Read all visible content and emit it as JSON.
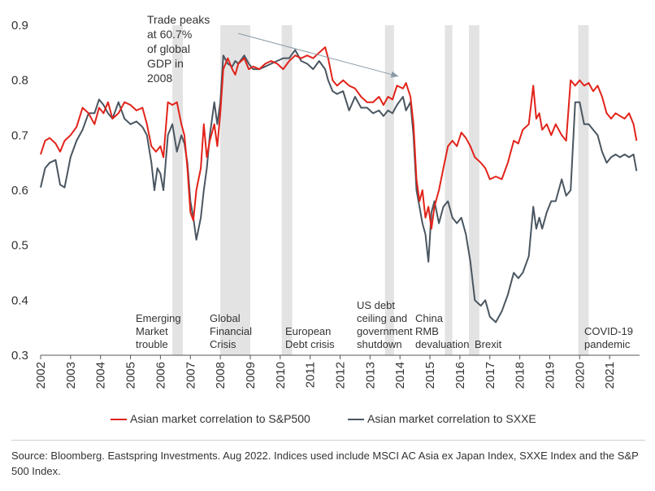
{
  "chart_data": {
    "type": "line",
    "title": "",
    "xlabel": "",
    "ylabel": "",
    "ylim": [
      0.3,
      0.9
    ],
    "xlim": [
      2002,
      2022
    ],
    "grid": false,
    "y_ticks": [
      "0.3",
      "0.4",
      "0.5",
      "0.6",
      "0.7",
      "0.8",
      "0.9"
    ],
    "x_ticks": [
      "2002",
      "2003",
      "2004",
      "2005",
      "2006",
      "2007",
      "2008",
      "2009",
      "2010",
      "2011",
      "2012",
      "2013",
      "2014",
      "2015",
      "2016",
      "2017",
      "2018",
      "2019",
      "2020",
      "2021"
    ],
    "legend_position": "bottom",
    "series": [
      {
        "name": "Asian market correlation to S&P500",
        "color": "#e2231a",
        "points": [
          [
            2002.0,
            0.665
          ],
          [
            2002.15,
            0.69
          ],
          [
            2002.3,
            0.695
          ],
          [
            2002.5,
            0.685
          ],
          [
            2002.65,
            0.67
          ],
          [
            2002.8,
            0.69
          ],
          [
            2003.0,
            0.7
          ],
          [
            2003.2,
            0.715
          ],
          [
            2003.4,
            0.75
          ],
          [
            2003.6,
            0.74
          ],
          [
            2003.8,
            0.72
          ],
          [
            2003.95,
            0.75
          ],
          [
            2004.1,
            0.74
          ],
          [
            2004.25,
            0.76
          ],
          [
            2004.4,
            0.73
          ],
          [
            2004.6,
            0.74
          ],
          [
            2004.8,
            0.76
          ],
          [
            2005.0,
            0.755
          ],
          [
            2005.2,
            0.745
          ],
          [
            2005.4,
            0.75
          ],
          [
            2005.55,
            0.72
          ],
          [
            2005.7,
            0.68
          ],
          [
            2005.85,
            0.67
          ],
          [
            2006.0,
            0.68
          ],
          [
            2006.1,
            0.66
          ],
          [
            2006.25,
            0.76
          ],
          [
            2006.4,
            0.755
          ],
          [
            2006.55,
            0.76
          ],
          [
            2006.7,
            0.72
          ],
          [
            2006.8,
            0.7
          ],
          [
            2006.9,
            0.64
          ],
          [
            2007.0,
            0.56
          ],
          [
            2007.1,
            0.545
          ],
          [
            2007.2,
            0.6
          ],
          [
            2007.35,
            0.64
          ],
          [
            2007.45,
            0.72
          ],
          [
            2007.55,
            0.66
          ],
          [
            2007.65,
            0.69
          ],
          [
            2007.8,
            0.72
          ],
          [
            2007.9,
            0.68
          ],
          [
            2008.0,
            0.74
          ],
          [
            2008.1,
            0.82
          ],
          [
            2008.25,
            0.84
          ],
          [
            2008.4,
            0.82
          ],
          [
            2008.5,
            0.81
          ],
          [
            2008.6,
            0.83
          ],
          [
            2008.8,
            0.84
          ],
          [
            2008.95,
            0.82
          ],
          [
            2009.1,
            0.825
          ],
          [
            2009.3,
            0.82
          ],
          [
            2009.5,
            0.83
          ],
          [
            2009.7,
            0.835
          ],
          [
            2009.9,
            0.83
          ],
          [
            2010.1,
            0.82
          ],
          [
            2010.3,
            0.835
          ],
          [
            2010.5,
            0.845
          ],
          [
            2010.7,
            0.84
          ],
          [
            2010.9,
            0.845
          ],
          [
            2011.1,
            0.84
          ],
          [
            2011.3,
            0.85
          ],
          [
            2011.5,
            0.86
          ],
          [
            2011.6,
            0.84
          ],
          [
            2011.75,
            0.8
          ],
          [
            2011.9,
            0.79
          ],
          [
            2012.1,
            0.8
          ],
          [
            2012.3,
            0.79
          ],
          [
            2012.5,
            0.785
          ],
          [
            2012.7,
            0.77
          ],
          [
            2012.9,
            0.76
          ],
          [
            2013.1,
            0.76
          ],
          [
            2013.3,
            0.77
          ],
          [
            2013.45,
            0.755
          ],
          [
            2013.6,
            0.77
          ],
          [
            2013.75,
            0.765
          ],
          [
            2013.9,
            0.79
          ],
          [
            2014.1,
            0.785
          ],
          [
            2014.2,
            0.795
          ],
          [
            2014.35,
            0.77
          ],
          [
            2014.45,
            0.72
          ],
          [
            2014.55,
            0.62
          ],
          [
            2014.65,
            0.58
          ],
          [
            2014.75,
            0.6
          ],
          [
            2014.85,
            0.55
          ],
          [
            2014.95,
            0.57
          ],
          [
            2015.05,
            0.53
          ],
          [
            2015.15,
            0.57
          ],
          [
            2015.3,
            0.6
          ],
          [
            2015.45,
            0.64
          ],
          [
            2015.6,
            0.68
          ],
          [
            2015.75,
            0.69
          ],
          [
            2015.9,
            0.68
          ],
          [
            2016.05,
            0.705
          ],
          [
            2016.2,
            0.695
          ],
          [
            2016.35,
            0.68
          ],
          [
            2016.5,
            0.66
          ],
          [
            2016.7,
            0.65
          ],
          [
            2016.85,
            0.64
          ],
          [
            2017.0,
            0.62
          ],
          [
            2017.2,
            0.625
          ],
          [
            2017.4,
            0.62
          ],
          [
            2017.6,
            0.65
          ],
          [
            2017.8,
            0.69
          ],
          [
            2017.95,
            0.685
          ],
          [
            2018.1,
            0.71
          ],
          [
            2018.3,
            0.72
          ],
          [
            2018.45,
            0.79
          ],
          [
            2018.55,
            0.73
          ],
          [
            2018.65,
            0.74
          ],
          [
            2018.75,
            0.71
          ],
          [
            2018.9,
            0.72
          ],
          [
            2019.05,
            0.7
          ],
          [
            2019.2,
            0.72
          ],
          [
            2019.4,
            0.7
          ],
          [
            2019.55,
            0.69
          ],
          [
            2019.7,
            0.8
          ],
          [
            2019.85,
            0.79
          ],
          [
            2020.0,
            0.8
          ],
          [
            2020.15,
            0.79
          ],
          [
            2020.3,
            0.795
          ],
          [
            2020.45,
            0.78
          ],
          [
            2020.6,
            0.79
          ],
          [
            2020.75,
            0.77
          ],
          [
            2020.9,
            0.74
          ],
          [
            2021.05,
            0.73
          ],
          [
            2021.2,
            0.74
          ],
          [
            2021.35,
            0.735
          ],
          [
            2021.5,
            0.73
          ],
          [
            2021.65,
            0.74
          ],
          [
            2021.8,
            0.72
          ],
          [
            2021.9,
            0.69
          ]
        ]
      },
      {
        "name": "Asian market correlation to SXXE",
        "color": "#4a5660",
        "points": [
          [
            2002.0,
            0.605
          ],
          [
            2002.15,
            0.64
          ],
          [
            2002.3,
            0.65
          ],
          [
            2002.5,
            0.655
          ],
          [
            2002.65,
            0.61
          ],
          [
            2002.8,
            0.605
          ],
          [
            2003.0,
            0.66
          ],
          [
            2003.2,
            0.69
          ],
          [
            2003.4,
            0.71
          ],
          [
            2003.6,
            0.74
          ],
          [
            2003.8,
            0.74
          ],
          [
            2003.95,
            0.765
          ],
          [
            2004.1,
            0.755
          ],
          [
            2004.25,
            0.74
          ],
          [
            2004.4,
            0.73
          ],
          [
            2004.6,
            0.76
          ],
          [
            2004.8,
            0.73
          ],
          [
            2005.0,
            0.72
          ],
          [
            2005.2,
            0.725
          ],
          [
            2005.4,
            0.715
          ],
          [
            2005.55,
            0.7
          ],
          [
            2005.7,
            0.65
          ],
          [
            2005.8,
            0.6
          ],
          [
            2005.9,
            0.64
          ],
          [
            2006.0,
            0.63
          ],
          [
            2006.1,
            0.6
          ],
          [
            2006.25,
            0.7
          ],
          [
            2006.4,
            0.72
          ],
          [
            2006.55,
            0.67
          ],
          [
            2006.7,
            0.7
          ],
          [
            2006.8,
            0.685
          ],
          [
            2006.9,
            0.65
          ],
          [
            2007.0,
            0.58
          ],
          [
            2007.1,
            0.55
          ],
          [
            2007.2,
            0.51
          ],
          [
            2007.35,
            0.55
          ],
          [
            2007.45,
            0.6
          ],
          [
            2007.55,
            0.64
          ],
          [
            2007.65,
            0.7
          ],
          [
            2007.8,
            0.76
          ],
          [
            2007.9,
            0.72
          ],
          [
            2008.0,
            0.76
          ],
          [
            2008.1,
            0.845
          ],
          [
            2008.25,
            0.83
          ],
          [
            2008.4,
            0.825
          ],
          [
            2008.5,
            0.835
          ],
          [
            2008.6,
            0.83
          ],
          [
            2008.8,
            0.845
          ],
          [
            2008.95,
            0.83
          ],
          [
            2009.1,
            0.82
          ],
          [
            2009.3,
            0.82
          ],
          [
            2009.5,
            0.825
          ],
          [
            2009.7,
            0.83
          ],
          [
            2009.9,
            0.835
          ],
          [
            2010.1,
            0.84
          ],
          [
            2010.3,
            0.84
          ],
          [
            2010.5,
            0.855
          ],
          [
            2010.7,
            0.835
          ],
          [
            2010.9,
            0.83
          ],
          [
            2011.1,
            0.82
          ],
          [
            2011.3,
            0.835
          ],
          [
            2011.5,
            0.82
          ],
          [
            2011.6,
            0.8
          ],
          [
            2011.75,
            0.78
          ],
          [
            2011.9,
            0.775
          ],
          [
            2012.1,
            0.78
          ],
          [
            2012.3,
            0.745
          ],
          [
            2012.5,
            0.77
          ],
          [
            2012.7,
            0.75
          ],
          [
            2012.9,
            0.75
          ],
          [
            2013.1,
            0.74
          ],
          [
            2013.3,
            0.745
          ],
          [
            2013.45,
            0.735
          ],
          [
            2013.6,
            0.745
          ],
          [
            2013.75,
            0.74
          ],
          [
            2013.9,
            0.755
          ],
          [
            2014.1,
            0.77
          ],
          [
            2014.2,
            0.745
          ],
          [
            2014.35,
            0.76
          ],
          [
            2014.45,
            0.7
          ],
          [
            2014.55,
            0.6
          ],
          [
            2014.65,
            0.57
          ],
          [
            2014.75,
            0.54
          ],
          [
            2014.85,
            0.52
          ],
          [
            2014.95,
            0.47
          ],
          [
            2015.05,
            0.56
          ],
          [
            2015.15,
            0.58
          ],
          [
            2015.3,
            0.54
          ],
          [
            2015.45,
            0.57
          ],
          [
            2015.6,
            0.58
          ],
          [
            2015.75,
            0.55
          ],
          [
            2015.9,
            0.54
          ],
          [
            2016.05,
            0.55
          ],
          [
            2016.2,
            0.52
          ],
          [
            2016.35,
            0.47
          ],
          [
            2016.5,
            0.4
          ],
          [
            2016.7,
            0.39
          ],
          [
            2016.85,
            0.4
          ],
          [
            2017.0,
            0.37
          ],
          [
            2017.2,
            0.36
          ],
          [
            2017.4,
            0.38
          ],
          [
            2017.6,
            0.41
          ],
          [
            2017.8,
            0.45
          ],
          [
            2017.95,
            0.44
          ],
          [
            2018.1,
            0.45
          ],
          [
            2018.3,
            0.48
          ],
          [
            2018.45,
            0.57
          ],
          [
            2018.55,
            0.53
          ],
          [
            2018.65,
            0.55
          ],
          [
            2018.75,
            0.53
          ],
          [
            2018.9,
            0.56
          ],
          [
            2019.05,
            0.58
          ],
          [
            2019.2,
            0.58
          ],
          [
            2019.4,
            0.62
          ],
          [
            2019.55,
            0.59
          ],
          [
            2019.7,
            0.6
          ],
          [
            2019.85,
            0.76
          ],
          [
            2020.0,
            0.76
          ],
          [
            2020.15,
            0.72
          ],
          [
            2020.3,
            0.72
          ],
          [
            2020.45,
            0.71
          ],
          [
            2020.6,
            0.7
          ],
          [
            2020.75,
            0.67
          ],
          [
            2020.9,
            0.65
          ],
          [
            2021.05,
            0.66
          ],
          [
            2021.2,
            0.665
          ],
          [
            2021.35,
            0.66
          ],
          [
            2021.5,
            0.665
          ],
          [
            2021.65,
            0.66
          ],
          [
            2021.8,
            0.665
          ],
          [
            2021.9,
            0.635
          ]
        ]
      }
    ],
    "shaded_periods": [
      [
        2006.4,
        2006.75
      ],
      [
        2008.0,
        2009.0
      ],
      [
        2010.05,
        2010.4
      ],
      [
        2013.5,
        2013.8
      ],
      [
        2015.5,
        2015.75
      ],
      [
        2016.3,
        2016.65
      ],
      [
        2019.95,
        2020.3
      ]
    ],
    "annotations": [
      {
        "lines": [
          "Emerging",
          "Market",
          "trouble"
        ]
      },
      {
        "lines": [
          "Global",
          "Financial",
          "Crisis"
        ]
      },
      {
        "lines": [
          "European",
          "Debt crisis"
        ]
      },
      {
        "lines": [
          "US debt",
          "ceiling and",
          "government",
          "shutdown"
        ]
      },
      {
        "lines": [
          "China",
          "RMB",
          "devaluation"
        ]
      },
      {
        "lines": [
          "Brexit"
        ]
      },
      {
        "lines": [
          "COVID-19",
          "pandemic"
        ]
      }
    ],
    "top_annotation": {
      "lines": [
        "Trade peaks",
        "at 60.7%",
        "of global",
        "GDP in",
        "2008"
      ],
      "arrow_from": [
        2008.6,
        0.885
      ],
      "arrow_to": [
        2013.95,
        0.807
      ]
    }
  },
  "legend": {
    "sp500_label": "Asian market correlation to S&P500",
    "sxxe_label": "Asian market correlation to SXXE"
  },
  "source_text": "Source: Bloomberg. Eastspring Investments. Aug 2022. Indices used include MSCI AC Asia ex Japan Index, SXXE Index and the S&P 500 Index."
}
